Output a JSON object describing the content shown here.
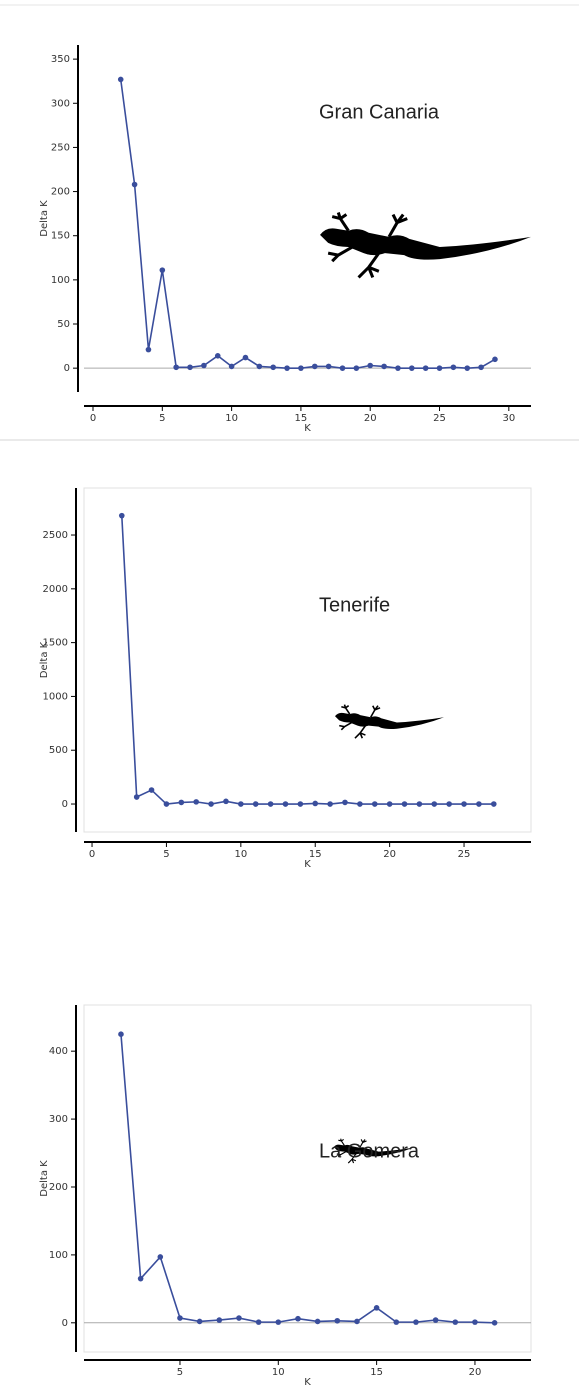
{
  "chart_data": [
    {
      "type": "line",
      "annotation": "Gran Canaria",
      "x_label": "K",
      "y_label": "Delta K",
      "color": "#3a4e9c",
      "frame": false,
      "zero_line": true,
      "x": [
        2,
        3,
        4,
        5,
        6,
        7,
        8,
        9,
        10,
        11,
        12,
        13,
        14,
        15,
        16,
        17,
        18,
        19,
        20,
        21,
        22,
        23,
        24,
        25,
        26,
        27,
        28,
        29
      ],
      "values": [
        327,
        208,
        21,
        111,
        1,
        1,
        3,
        14,
        2,
        12,
        2,
        1,
        0,
        0,
        2,
        2,
        0,
        0,
        3,
        2,
        0,
        0,
        0,
        0,
        1,
        0,
        1,
        10
      ],
      "xlim": [
        -0.65,
        31.6
      ],
      "xticks": [
        0,
        5,
        10,
        15,
        20,
        25,
        30
      ],
      "ylim": [
        -27,
        366
      ],
      "yticks": [
        0,
        50,
        100,
        150,
        200,
        250,
        300,
        350
      ]
    },
    {
      "type": "line",
      "annotation": "Tenerife",
      "x_label": "K",
      "y_label": "Delta K",
      "color": "#3a4e9c",
      "frame": true,
      "zero_line": false,
      "x": [
        2,
        3,
        4,
        5,
        6,
        7,
        8,
        9,
        10,
        11,
        12,
        13,
        14,
        15,
        16,
        17,
        18,
        19,
        20,
        21,
        22,
        23,
        24,
        25,
        26,
        27
      ],
      "values": [
        2680,
        65,
        130,
        0,
        15,
        20,
        0,
        25,
        0,
        0,
        0,
        0,
        0,
        5,
        0,
        15,
        0,
        0,
        0,
        0,
        0,
        0,
        0,
        0,
        0,
        0
      ],
      "xlim": [
        -0.54,
        29.5
      ],
      "xticks": [
        0,
        5,
        10,
        15,
        20,
        25
      ],
      "ylim": [
        -260,
        2937
      ],
      "yticks": [
        0,
        500,
        1000,
        1500,
        2000,
        2500
      ]
    },
    {
      "type": "line",
      "annotation": "La Gomera",
      "x_label": "K",
      "y_label": "Delta K",
      "color": "#3a4e9c",
      "frame": true,
      "zero_line": true,
      "x": [
        2,
        3,
        4,
        5,
        6,
        7,
        8,
        9,
        10,
        11,
        12,
        13,
        14,
        15,
        16,
        17,
        18,
        19,
        20,
        21
      ],
      "values": [
        425,
        65,
        97,
        7,
        2,
        4,
        7,
        1,
        1,
        6,
        2,
        3,
        2,
        22,
        1,
        1,
        4,
        1,
        1,
        0
      ],
      "xlim": [
        0.12,
        22.85
      ],
      "xticks": [
        5,
        10,
        15,
        20
      ],
      "ylim": [
        -43,
        468
      ],
      "yticks": [
        0,
        100,
        200,
        300,
        400
      ]
    }
  ]
}
